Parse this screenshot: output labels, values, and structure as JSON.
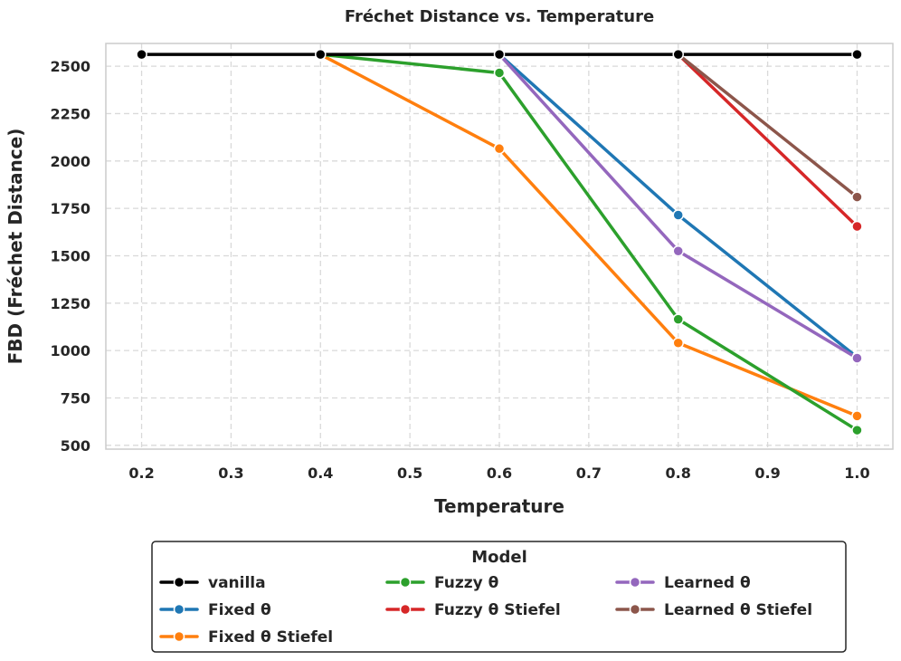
{
  "chart_data": {
    "type": "line",
    "title": "Fréchet Distance vs. Temperature",
    "xlabel": "Temperature",
    "ylabel": "FBD (Fréchet Distance)",
    "x": [
      0.2,
      0.4,
      0.6,
      0.8,
      1.0
    ],
    "xlim": [
      0.16,
      1.04
    ],
    "ylim": [
      480,
      2620
    ],
    "xticks": [
      0.2,
      0.3,
      0.4,
      0.5,
      0.6,
      0.7,
      0.8,
      0.9,
      1.0
    ],
    "xtick_labels": [
      "0.2",
      "0.3",
      "0.4",
      "0.5",
      "0.6",
      "0.7",
      "0.8",
      "0.9",
      "1.0"
    ],
    "yticks": [
      500,
      750,
      1000,
      1250,
      1500,
      1750,
      2000,
      2250,
      2500
    ],
    "ytick_labels": [
      "500",
      "750",
      "1000",
      "1250",
      "1500",
      "1750",
      "2000",
      "2250",
      "2500"
    ],
    "grid": true,
    "legend_title": "Model",
    "legend_position": "bottom-center",
    "series": [
      {
        "name": "vanilla",
        "color": "#000000",
        "x": [
          0.2,
          0.4,
          0.6,
          0.8,
          1.0
        ],
        "values": [
          2562,
          2562,
          2562,
          2562,
          2562
        ]
      },
      {
        "name": "Fixed θ",
        "color": "#1f77b4",
        "x": [
          0.6,
          0.8,
          1.0
        ],
        "values": [
          2562,
          1715,
          965
        ]
      },
      {
        "name": "Fixed θ Stiefel",
        "color": "#ff7f0e",
        "x": [
          0.4,
          0.6,
          0.8,
          1.0
        ],
        "values": [
          2562,
          2065,
          1040,
          655
        ]
      },
      {
        "name": "Fuzzy θ",
        "color": "#2ca02c",
        "x": [
          0.4,
          0.6,
          0.8,
          1.0
        ],
        "values": [
          2562,
          2465,
          1165,
          580
        ]
      },
      {
        "name": "Fuzzy θ Stiefel",
        "color": "#d62728",
        "x": [
          0.8,
          1.0
        ],
        "values": [
          2562,
          1655
        ]
      },
      {
        "name": "Learned θ",
        "color": "#9467bd",
        "x": [
          0.6,
          0.8,
          1.0
        ],
        "values": [
          2562,
          1525,
          960
        ]
      },
      {
        "name": "Learned θ Stiefel",
        "color": "#8c564b",
        "x": [
          0.8,
          1.0
        ],
        "values": [
          2562,
          1810
        ]
      }
    ]
  }
}
